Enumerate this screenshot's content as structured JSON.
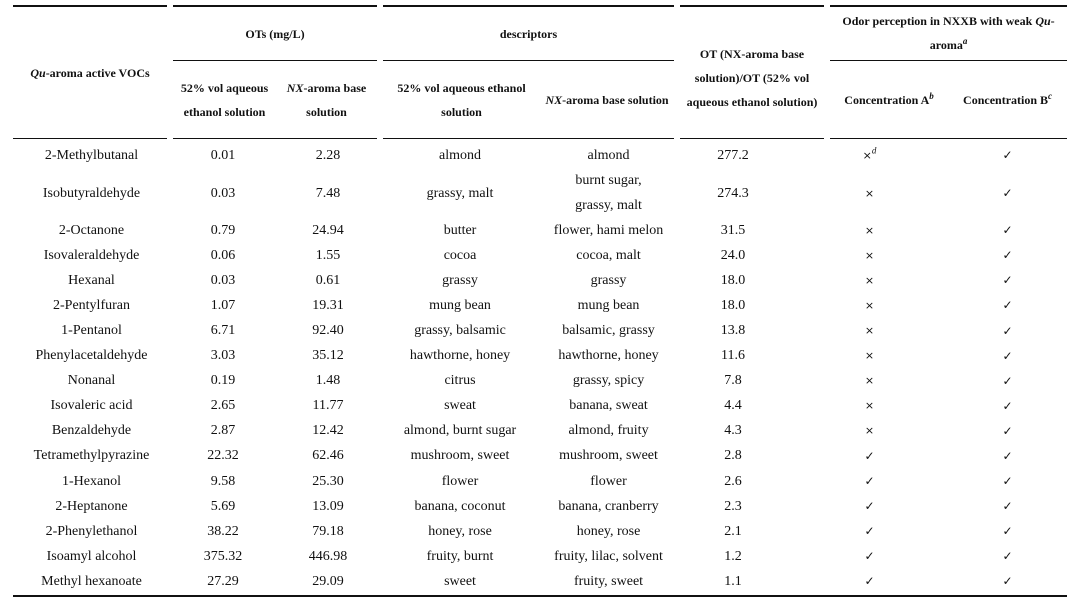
{
  "table": {
    "headers": {
      "compound_prefix": "Qu",
      "compound_suffix": "-aroma active VOCs",
      "ots": "OTs (mg/L)",
      "descriptors": "descriptors",
      "ratio": "OT (NX-aroma base solution)/OT (52% vol aqueous ethanol solution)",
      "odor_prefix": "Odor perception in NXXB with weak ",
      "odor_qu": "Qu",
      "odor_suffix": "-aroma",
      "odor_note": "a",
      "ot_ethanol": "52% vol aqueous ethanol solution",
      "ot_nx_prefix": "NX",
      "ot_nx_suffix": "-aroma base solution",
      "desc_ethanol": "52% vol aqueous ethanol solution",
      "desc_nx_prefix": "NX",
      "desc_nx_suffix": "-aroma base solution",
      "conc_a": "Concentration A",
      "conc_a_note": "b",
      "conc_b": "Concentration B",
      "conc_b_note": "c"
    },
    "marks": {
      "no": "×",
      "yes": "✓",
      "no_note": "d"
    },
    "rows": [
      {
        "compound": "2-Methylbutanal",
        "ot_ethanol": "0.01",
        "ot_nx": "2.28",
        "desc_ethanol": "almond",
        "desc_nx": "almond",
        "ratio": "277.2",
        "conc_a": "no",
        "conc_b": "yes"
      },
      {
        "compound": "Isobutyraldehyde",
        "ot_ethanol": "0.03",
        "ot_nx": "7.48",
        "desc_ethanol": "grassy, malt",
        "desc_nx": "burnt sugar, grassy, malt",
        "ratio": "274.3",
        "conc_a": "no",
        "conc_b": "yes"
      },
      {
        "compound": "2-Octanone",
        "ot_ethanol": "0.79",
        "ot_nx": "24.94",
        "desc_ethanol": "butter",
        "desc_nx": "flower, hami melon",
        "ratio": "31.5",
        "conc_a": "no",
        "conc_b": "yes"
      },
      {
        "compound": "Isovaleraldehyde",
        "ot_ethanol": "0.06",
        "ot_nx": "1.55",
        "desc_ethanol": "cocoa",
        "desc_nx": "cocoa, malt",
        "ratio": "24.0",
        "conc_a": "no",
        "conc_b": "yes"
      },
      {
        "compound": "Hexanal",
        "ot_ethanol": "0.03",
        "ot_nx": "0.61",
        "desc_ethanol": "grassy",
        "desc_nx": "grassy",
        "ratio": "18.0",
        "conc_a": "no",
        "conc_b": "yes"
      },
      {
        "compound": "2-Pentylfuran",
        "ot_ethanol": "1.07",
        "ot_nx": "19.31",
        "desc_ethanol": "mung bean",
        "desc_nx": "mung bean",
        "ratio": "18.0",
        "conc_a": "no",
        "conc_b": "yes"
      },
      {
        "compound": "1-Pentanol",
        "ot_ethanol": "6.71",
        "ot_nx": "92.40",
        "desc_ethanol": "grassy, balsamic",
        "desc_nx": "balsamic, grassy",
        "ratio": "13.8",
        "conc_a": "no",
        "conc_b": "yes"
      },
      {
        "compound": "Phenylacetaldehyde",
        "ot_ethanol": "3.03",
        "ot_nx": "35.12",
        "desc_ethanol": "hawthorne, honey",
        "desc_nx": "hawthorne, honey",
        "ratio": "11.6",
        "conc_a": "no",
        "conc_b": "yes"
      },
      {
        "compound": "Nonanal",
        "ot_ethanol": "0.19",
        "ot_nx": "1.48",
        "desc_ethanol": "citrus",
        "desc_nx": "grassy, spicy",
        "ratio": "7.8",
        "conc_a": "no",
        "conc_b": "yes"
      },
      {
        "compound": "Isovaleric acid",
        "ot_ethanol": "2.65",
        "ot_nx": "11.77",
        "desc_ethanol": "sweat",
        "desc_nx": "banana, sweat",
        "ratio": "4.4",
        "conc_a": "no",
        "conc_b": "yes"
      },
      {
        "compound": "Benzaldehyde",
        "ot_ethanol": "2.87",
        "ot_nx": "12.42",
        "desc_ethanol": "almond, burnt sugar",
        "desc_nx": "almond, fruity",
        "ratio": "4.3",
        "conc_a": "no",
        "conc_b": "yes"
      },
      {
        "compound": "Tetramethylpyrazine",
        "ot_ethanol": "22.32",
        "ot_nx": "62.46",
        "desc_ethanol": "mushroom, sweet",
        "desc_nx": "mushroom, sweet",
        "ratio": "2.8",
        "conc_a": "yes",
        "conc_b": "yes"
      },
      {
        "compound": "1-Hexanol",
        "ot_ethanol": "9.58",
        "ot_nx": "25.30",
        "desc_ethanol": "flower",
        "desc_nx": "flower",
        "ratio": "2.6",
        "conc_a": "yes",
        "conc_b": "yes"
      },
      {
        "compound": "2-Heptanone",
        "ot_ethanol": "5.69",
        "ot_nx": "13.09",
        "desc_ethanol": "banana, coconut",
        "desc_nx": "banana, cranberry",
        "ratio": "2.3",
        "conc_a": "yes",
        "conc_b": "yes"
      },
      {
        "compound": "2-Phenylethanol",
        "ot_ethanol": "38.22",
        "ot_nx": "79.18",
        "desc_ethanol": "honey, rose",
        "desc_nx": "honey, rose",
        "ratio": "2.1",
        "conc_a": "yes",
        "conc_b": "yes"
      },
      {
        "compound": "Isoamyl alcohol",
        "ot_ethanol": "375.32",
        "ot_nx": "446.98",
        "desc_ethanol": "fruity, burnt",
        "desc_nx": "fruity, lilac, solvent",
        "ratio": "1.2",
        "conc_a": "yes",
        "conc_b": "yes"
      },
      {
        "compound": "Methyl hexanoate",
        "ot_ethanol": "27.29",
        "ot_nx": "29.09",
        "desc_ethanol": "sweet",
        "desc_nx": "fruity, sweet",
        "ratio": "1.1",
        "conc_a": "yes",
        "conc_b": "yes"
      }
    ]
  }
}
